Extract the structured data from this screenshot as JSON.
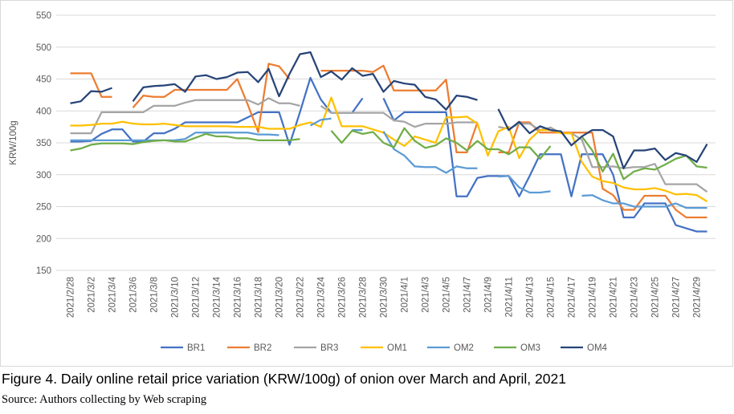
{
  "chart_data": {
    "type": "line",
    "title": "Figure 4. Daily online retail price variation (KRW/100g) of onion over March and April, 2021",
    "source": "Source: Authors collecting by Web scraping",
    "y_label": "KRW/100g",
    "categories": [
      "2021/2/28",
      null,
      "2021/3/2",
      null,
      "2021/3/4",
      null,
      "2021/3/6",
      null,
      "2021/3/8",
      null,
      "2021/3/10",
      null,
      "2021/3/12",
      null,
      "2021/3/14",
      null,
      "2021/3/16",
      null,
      "2021/3/18",
      null,
      "2021/3/20",
      null,
      "2021/3/22",
      null,
      "2021/3/24",
      null,
      "2021/3/26",
      null,
      "2021/3/28",
      null,
      "2021/3/30",
      null,
      "2021/4/1",
      null,
      "2021/4/3",
      null,
      "2021/4/5",
      null,
      "2021/4/7",
      null,
      "2021/4/9",
      null,
      "2021/4/11",
      null,
      "2021/4/13",
      null,
      "2021/4/15",
      null,
      "2021/4/17",
      null,
      "2021/4/19",
      null,
      "2021/4/21",
      null,
      "2021/4/23",
      null,
      "2021/4/25",
      null,
      "2021/4/27",
      null,
      "2021/4/29",
      null
    ],
    "ylim": [
      150,
      550
    ],
    "yticks": [
      150,
      200,
      250,
      300,
      350,
      400,
      450,
      500,
      550
    ],
    "grid": true,
    "legend": "bottom",
    "series": [
      {
        "name": "BR1",
        "color": "#4472c4",
        "values": [
          352,
          352,
          353,
          364,
          371,
          371,
          352,
          352,
          365,
          365,
          372,
          382,
          382,
          382,
          382,
          382,
          382,
          390,
          398,
          398,
          398,
          347,
          398,
          452,
          418,
          397,
          397,
          397,
          420,
          null,
          420,
          385,
          398,
          398,
          398,
          398,
          398,
          266,
          266,
          295,
          298,
          298,
          298,
          266,
          298,
          332,
          332,
          332,
          266,
          332,
          332,
          332,
          300,
          233,
          233,
          255,
          255,
          255,
          221,
          216,
          211,
          211
        ]
      },
      {
        "name": "BR2",
        "color": "#ed7d31",
        "values": [
          459,
          459,
          459,
          422,
          422,
          null,
          405,
          424,
          422,
          422,
          433,
          433,
          433,
          433,
          433,
          433,
          450,
          410,
          367,
          474,
          470,
          450,
          null,
          null,
          463,
          463,
          463,
          463,
          463,
          461,
          471,
          432,
          432,
          432,
          432,
          432,
          449,
          335,
          335,
          382,
          null,
          335,
          335,
          382,
          382,
          366,
          366,
          366,
          366,
          366,
          366,
          278,
          268,
          245,
          245,
          267,
          267,
          267,
          245,
          233,
          233,
          233
        ]
      },
      {
        "name": "BR3",
        "color": "#a5a5a5",
        "values": [
          365,
          365,
          365,
          398,
          398,
          398,
          398,
          398,
          408,
          408,
          408,
          413,
          417,
          417,
          417,
          417,
          417,
          417,
          410,
          420,
          412,
          412,
          408,
          null,
          408,
          397,
          397,
          397,
          397,
          397,
          397,
          385,
          383,
          375,
          380,
          380,
          380,
          382,
          382,
          382,
          null,
          375,
          372,
          380,
          380,
          370,
          374,
          365,
          365,
          355,
          312,
          312,
          313,
          310,
          312,
          312,
          317,
          285,
          285,
          285,
          285,
          273
        ]
      },
      {
        "name": "OM1",
        "color": "#ffc000",
        "values": [
          377,
          377,
          378,
          380,
          380,
          383,
          380,
          379,
          379,
          380,
          378,
          376,
          376,
          376,
          376,
          376,
          375,
          375,
          375,
          372,
          372,
          372,
          378,
          382,
          375,
          421,
          376,
          376,
          376,
          371,
          366,
          355,
          345,
          360,
          355,
          350,
          390,
          390,
          391,
          380,
          330,
          368,
          375,
          326,
          355,
          370,
          370,
          365,
          365,
          320,
          297,
          290,
          287,
          280,
          277,
          277,
          279,
          275,
          269,
          270,
          268,
          258
        ]
      },
      {
        "name": "OM2",
        "color": "#5b9bd5",
        "values": [
          354,
          354,
          354,
          354,
          354,
          354,
          354,
          354,
          354,
          354,
          354,
          356,
          366,
          366,
          366,
          366,
          366,
          366,
          363,
          363,
          362,
          null,
          null,
          377,
          386,
          388,
          null,
          370,
          370,
          null,
          368,
          340,
          330,
          313,
          312,
          312,
          303,
          313,
          310,
          310,
          null,
          297,
          298,
          280,
          272,
          272,
          274,
          null,
          null,
          267,
          268,
          260,
          255,
          255,
          250,
          250,
          250,
          250,
          255,
          248,
          248,
          248
        ]
      },
      {
        "name": "OM3",
        "color": "#70ad47",
        "values": [
          338,
          341,
          347,
          349,
          349,
          349,
          348,
          351,
          353,
          354,
          352,
          352,
          358,
          364,
          360,
          360,
          357,
          357,
          354,
          354,
          354,
          354,
          356,
          null,
          null,
          369,
          350,
          369,
          364,
          367,
          350,
          343,
          373,
          353,
          342,
          346,
          357,
          350,
          338,
          353,
          340,
          340,
          332,
          343,
          343,
          325,
          345,
          null,
          null,
          360,
          338,
          305,
          333,
          293,
          305,
          310,
          308,
          316,
          325,
          330,
          313,
          311
        ]
      },
      {
        "name": "OM4",
        "color": "#264478",
        "values": [
          412,
          415,
          431,
          430,
          436,
          null,
          415,
          437,
          439,
          440,
          442,
          430,
          454,
          456,
          450,
          453,
          460,
          461,
          445,
          466,
          423,
          458,
          489,
          492,
          453,
          462,
          449,
          467,
          455,
          458,
          430,
          447,
          443,
          441,
          422,
          418,
          402,
          424,
          422,
          417,
          null,
          403,
          370,
          383,
          365,
          376,
          370,
          368,
          346,
          360,
          370,
          370,
          360,
          310,
          338,
          338,
          341,
          323,
          334,
          330,
          320,
          348
        ]
      }
    ]
  }
}
